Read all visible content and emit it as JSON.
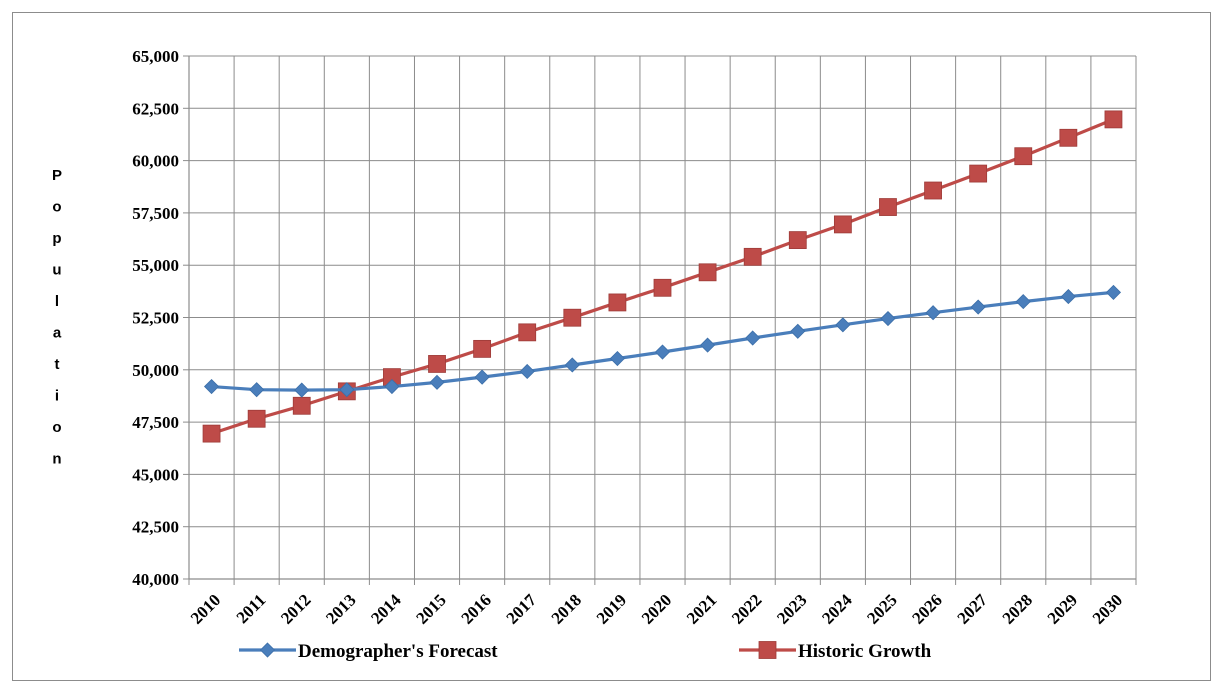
{
  "chart_data": {
    "type": "line",
    "title": "",
    "xlabel": "",
    "ylabel": "Population",
    "categories": [
      "2010",
      "2011",
      "2012",
      "2013",
      "2014",
      "2015",
      "2016",
      "2017",
      "2018",
      "2019",
      "2020",
      "2021",
      "2022",
      "2023",
      "2024",
      "2025",
      "2026",
      "2027",
      "2028",
      "2029",
      "2030"
    ],
    "y_ticks": [
      "40,000",
      "42,500",
      "45,000",
      "47,500",
      "50,000",
      "52,500",
      "55,000",
      "57,500",
      "60,000",
      "62,500",
      "65,000"
    ],
    "ylim": [
      40000,
      65000
    ],
    "grid": true,
    "legend_position": "bottom",
    "series": [
      {
        "name": "Demographer's Forecast",
        "color": "#4a7ebb",
        "marker": "diamond",
        "values": [
          49200,
          49050,
          49030,
          49050,
          49200,
          49400,
          49650,
          49920,
          50230,
          50540,
          50850,
          51180,
          51520,
          51840,
          52150,
          52450,
          52730,
          53000,
          53260,
          53500,
          53700
        ]
      },
      {
        "name": "Historic Growth",
        "color": "#be4b48",
        "marker": "square",
        "values": [
          46950,
          47660,
          48280,
          48970,
          49650,
          50280,
          51000,
          51790,
          52490,
          53220,
          53920,
          54660,
          55400,
          56200,
          56950,
          57780,
          58570,
          59380,
          60210,
          61090,
          61970
        ]
      }
    ]
  }
}
